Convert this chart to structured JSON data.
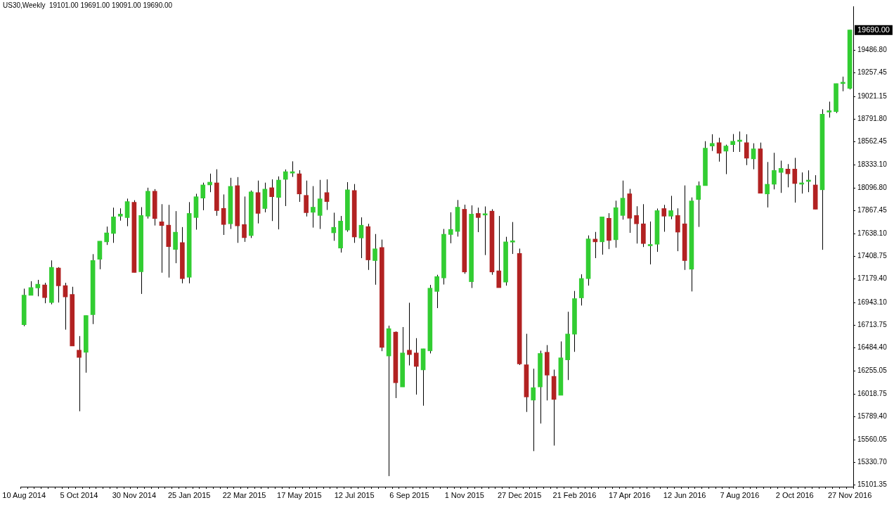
{
  "chart_data": {
    "type": "candlestick",
    "title": "US30,Weekly  19101.00 19691.00 19091.00 19690.00",
    "categories": [
      "10 Aug 2014",
      null,
      null,
      null,
      null,
      null,
      null,
      null,
      "5 Oct 2014",
      null,
      null,
      null,
      null,
      null,
      null,
      null,
      "30 Nov 2014",
      null,
      null,
      null,
      null,
      null,
      null,
      null,
      "25 Jan 2015",
      null,
      null,
      null,
      null,
      null,
      null,
      null,
      "22 Mar 2015",
      null,
      null,
      null,
      null,
      null,
      null,
      null,
      "17 May 2015",
      null,
      null,
      null,
      null,
      null,
      null,
      null,
      "12 Jul 2015",
      null,
      null,
      null,
      null,
      null,
      null,
      null,
      "6 Sep 2015",
      null,
      null,
      null,
      null,
      null,
      null,
      null,
      "1 Nov 2015",
      null,
      null,
      null,
      null,
      null,
      null,
      null,
      "27 Dec 2015",
      null,
      null,
      null,
      null,
      null,
      null,
      null,
      "21 Feb 2016",
      null,
      null,
      null,
      null,
      null,
      null,
      null,
      "17 Apr 2016",
      null,
      null,
      null,
      null,
      null,
      null,
      null,
      "12 Jun 2016",
      null,
      null,
      null,
      null,
      null,
      null,
      null,
      "7 Aug 2016",
      null,
      null,
      null,
      null,
      null,
      null,
      null,
      "2 Oct 2016",
      null,
      null,
      null,
      null,
      null,
      null,
      null,
      "27 Nov 2016"
    ],
    "ohlc": [
      [
        16718,
        17082,
        16704,
        17017
      ],
      [
        17015,
        17157,
        17015,
        17094
      ],
      [
        17089,
        17171,
        17005,
        17127
      ],
      [
        17120,
        17141,
        16935,
        16991
      ],
      [
        16942,
        17367,
        16924,
        17297
      ],
      [
        17290,
        17299,
        16942,
        17110
      ],
      [
        17113,
        17141,
        16669,
        16998
      ],
      [
        17024,
        17101,
        16504,
        16504
      ],
      [
        16462,
        16604,
        15846,
        16389
      ],
      [
        16441,
        16812,
        16235,
        16812
      ],
      [
        16819,
        17430,
        16725,
        17367
      ],
      [
        17379,
        17561,
        17278,
        17561
      ],
      [
        17554,
        17708,
        17523,
        17645
      ],
      [
        17638,
        17899,
        17544,
        17806
      ],
      [
        17813,
        17892,
        17768,
        17834
      ],
      [
        17799,
        17990,
        17712,
        17960
      ],
      [
        17953,
        17974,
        17246,
        17246
      ],
      [
        17253,
        17904,
        17029,
        17820
      ],
      [
        17813,
        18100,
        17789,
        18065
      ],
      [
        18065,
        18086,
        17719,
        17789
      ],
      [
        17757,
        17934,
        17243,
        17719
      ],
      [
        17722,
        17927,
        17194,
        17505
      ],
      [
        17477,
        17864,
        17339,
        17652
      ],
      [
        17547,
        17703,
        17136,
        17183
      ],
      [
        17197,
        17955,
        17136,
        17841
      ],
      [
        17799,
        18039,
        17677,
        18009
      ],
      [
        17995,
        18151,
        17873,
        18128
      ],
      [
        18128,
        18242,
        18055,
        18156
      ],
      [
        18149,
        18286,
        17817,
        17869
      ],
      [
        17892,
        18032,
        17624,
        17729
      ],
      [
        17736,
        18200,
        17684,
        18114
      ],
      [
        18121,
        18207,
        17544,
        17715
      ],
      [
        17729,
        18011,
        17554,
        17596
      ],
      [
        17617,
        18072,
        17593,
        18058
      ],
      [
        18051,
        18172,
        17740,
        17841
      ],
      [
        17890,
        18151,
        17852,
        18086
      ],
      [
        18100,
        18184,
        17764,
        18009
      ],
      [
        18002,
        18214,
        17680,
        18177
      ],
      [
        18184,
        18284,
        17915,
        18261
      ],
      [
        18247,
        18366,
        18209,
        18247
      ],
      [
        18240,
        18277,
        17957,
        18037
      ],
      [
        18023,
        18172,
        17810,
        17848
      ],
      [
        17852,
        18116,
        17698,
        17904
      ],
      [
        17820,
        18179,
        17684,
        17988
      ],
      [
        18051,
        18184,
        17876,
        17960
      ],
      [
        17645,
        17848,
        17565,
        17701
      ],
      [
        17491,
        17815,
        17446,
        17764
      ],
      [
        17673,
        18156,
        17656,
        18079
      ],
      [
        18072,
        18137,
        17544,
        17603
      ],
      [
        17593,
        17801,
        17390,
        17722
      ],
      [
        17708,
        17736,
        17271,
        17372
      ],
      [
        17365,
        17633,
        17122,
        17484
      ],
      [
        17498,
        17577,
        16452,
        16490
      ],
      [
        16403,
        16709,
        15192,
        16679
      ],
      [
        16644,
        16651,
        15979,
        16133
      ],
      [
        16091,
        16695,
        16091,
        16434
      ],
      [
        16462,
        16940,
        16308,
        16417
      ],
      [
        16434,
        16583,
        16014,
        16298
      ],
      [
        16263,
        16476,
        15902,
        16476
      ],
      [
        16455,
        17120,
        16429,
        17087
      ],
      [
        17054,
        17222,
        16886,
        17204
      ],
      [
        17190,
        17684,
        17124,
        17631
      ],
      [
        17628,
        17852,
        17540,
        17680
      ],
      [
        17659,
        17976,
        17607,
        17904
      ],
      [
        17883,
        17929,
        17232,
        17250
      ],
      [
        17152,
        17922,
        17089,
        17834
      ],
      [
        17841,
        17899,
        17652,
        17799
      ],
      [
        17824,
        17911,
        17421,
        17824
      ],
      [
        17864,
        17883,
        17222,
        17250
      ],
      [
        17262,
        17815,
        17092,
        17092
      ],
      [
        17148,
        17605,
        17113,
        17554
      ],
      [
        17551,
        17754,
        17432,
        17551
      ],
      [
        17437,
        17486,
        16312,
        16324
      ],
      [
        16315,
        16627,
        15839,
        15990
      ],
      [
        15958,
        16275,
        15444,
        16084
      ],
      [
        16091,
        16457,
        15722,
        16429
      ],
      [
        16441,
        16513,
        15955,
        16210
      ],
      [
        16198,
        16266,
        15500,
        15965
      ],
      [
        16007,
        16550,
        16007,
        16385
      ],
      [
        16364,
        16849,
        16161,
        16625
      ],
      [
        16623,
        17059,
        16445,
        16982
      ],
      [
        16989,
        17227,
        16912,
        17185
      ],
      [
        17183,
        17619,
        17113,
        17584
      ],
      [
        17582,
        17654,
        17390,
        17554
      ],
      [
        17554,
        17806,
        17425,
        17806
      ],
      [
        17792,
        17843,
        17481,
        17568
      ],
      [
        17575,
        17969,
        17495,
        17899
      ],
      [
        17820,
        18172,
        17778,
        17995
      ],
      [
        18039,
        18088,
        17645,
        17792
      ],
      [
        17820,
        17913,
        17537,
        17736
      ],
      [
        17736,
        17934,
        17502,
        17537
      ],
      [
        17514,
        17759,
        17327,
        17514
      ],
      [
        17530,
        17890,
        17453,
        17869
      ],
      [
        17890,
        17927,
        17656,
        17813
      ],
      [
        17813,
        18018,
        17782,
        17869
      ],
      [
        17820,
        17892,
        17460,
        17652
      ],
      [
        17736,
        18123,
        17271,
        17365
      ],
      [
        17278,
        18002,
        17054,
        17967
      ],
      [
        17981,
        18163,
        17705,
        18121
      ],
      [
        18121,
        18569,
        18121,
        18499
      ],
      [
        18520,
        18639,
        18471,
        18548
      ],
      [
        18555,
        18604,
        18363,
        18447
      ],
      [
        18468,
        18534,
        18237,
        18520
      ],
      [
        18534,
        18641,
        18461,
        18569
      ],
      [
        18566,
        18667,
        18461,
        18566
      ],
      [
        18555,
        18639,
        18328,
        18398
      ],
      [
        18391,
        18548,
        18286,
        18492
      ],
      [
        18492,
        18555,
        18044,
        18044
      ],
      [
        18037,
        18359,
        17901,
        18135
      ],
      [
        18135,
        18452,
        18083,
        18275
      ],
      [
        18254,
        18373,
        18048,
        18296
      ],
      [
        18289,
        18338,
        18104,
        18240
      ],
      [
        18289,
        18401,
        17950,
        18142
      ],
      [
        18135,
        18254,
        18041,
        18149
      ],
      [
        18163,
        18275,
        18055,
        18177
      ],
      [
        18128,
        18226,
        17883,
        17883
      ],
      [
        18079,
        18891,
        17474,
        18842
      ],
      [
        18863,
        18968,
        18807,
        18877
      ],
      [
        18867,
        19150,
        18853,
        19150
      ],
      [
        19150,
        19220,
        19073,
        19164
      ],
      [
        19101,
        19691,
        19091,
        19690
      ]
    ],
    "colors": [
      "#32cd32",
      "#32cd32",
      "#32cd32",
      "#b22222",
      "#32cd32",
      "#b22222",
      "#b22222",
      "#b22222",
      "#b22222",
      "#32cd32",
      "#32cd32",
      "#32cd32",
      "#32cd32",
      "#32cd32",
      "#32cd32",
      "#32cd32",
      "#b22222",
      "#32cd32",
      "#32cd32",
      "#b22222",
      "#b22222",
      "#b22222",
      "#32cd32",
      "#b22222",
      "#32cd32",
      "#32cd32",
      "#32cd32",
      "#32cd32",
      "#b22222",
      "#b22222",
      "#32cd32",
      "#b22222",
      "#b22222",
      "#32cd32",
      "#b22222",
      "#32cd32",
      "#b22222",
      "#32cd32",
      "#32cd32",
      "#32cd32",
      "#b22222",
      "#b22222",
      "#32cd32",
      "#32cd32",
      "#b22222",
      "#32cd32",
      "#32cd32",
      "#32cd32",
      "#b22222",
      "#32cd32",
      "#b22222",
      "#32cd32",
      "#b22222",
      "#32cd32",
      "#b22222",
      "#32cd32",
      "#b22222",
      "#b22222",
      "#32cd32",
      "#32cd32",
      "#32cd32",
      "#32cd32",
      "#32cd32",
      "#32cd32",
      "#b22222",
      "#32cd32",
      "#b22222",
      "#32cd32",
      "#b22222",
      "#b22222",
      "#32cd32",
      "#32cd32",
      "#b22222",
      "#b22222",
      "#32cd32",
      "#32cd32",
      "#b22222",
      "#b22222",
      "#32cd32",
      "#32cd32",
      "#32cd32",
      "#32cd32",
      "#32cd32",
      "#b22222",
      "#32cd32",
      "#b22222",
      "#32cd32",
      "#32cd32",
      "#b22222",
      "#b22222",
      "#b22222",
      "#32cd32",
      "#32cd32",
      "#b22222",
      "#32cd32",
      "#b22222",
      "#b22222",
      "#32cd32",
      "#32cd32",
      "#32cd32",
      "#32cd32",
      "#b22222",
      "#32cd32",
      "#32cd32",
      "#32cd32",
      "#b22222",
      "#32cd32",
      "#b22222",
      "#32cd32",
      "#32cd32",
      "#32cd32",
      "#b22222",
      "#b22222",
      "#32cd32",
      "#32cd32",
      "#b22222",
      "#32cd32",
      "#32cd32",
      "#32cd32",
      "#32cd32",
      "#32cd32"
    ],
    "ylim": [
      15085,
      19929
    ],
    "yticks": [
      {
        "value": 15101.35,
        "label": "15101.35"
      },
      {
        "value": 15330.7,
        "label": "15330.70"
      },
      {
        "value": 15560.05,
        "label": "15560.05"
      },
      {
        "value": 15789.4,
        "label": "15789.40"
      },
      {
        "value": 16018.75,
        "label": "16018.75"
      },
      {
        "value": 16255.05,
        "label": "16255.05"
      },
      {
        "value": 16484.4,
        "label": "16484.40"
      },
      {
        "value": 16713.75,
        "label": "16713.75"
      },
      {
        "value": 16943.1,
        "label": "16943.10"
      },
      {
        "value": 17179.4,
        "label": "17179.40"
      },
      {
        "value": 17408.75,
        "label": "17408.75"
      },
      {
        "value": 17638.1,
        "label": "17638.10"
      },
      {
        "value": 17867.45,
        "label": "17867.45"
      },
      {
        "value": 18096.8,
        "label": "18096.80"
      },
      {
        "value": 18333.1,
        "label": "18333.10"
      },
      {
        "value": 18562.45,
        "label": "18562.45"
      },
      {
        "value": 18791.8,
        "label": "18791.80"
      },
      {
        "value": 19021.15,
        "label": "19021.15"
      },
      {
        "value": 19257.45,
        "label": "19257.45"
      },
      {
        "value": 19486.8,
        "label": "19486.80"
      }
    ],
    "annotations": [
      "19690.00"
    ],
    "grid": false,
    "legend": false
  }
}
